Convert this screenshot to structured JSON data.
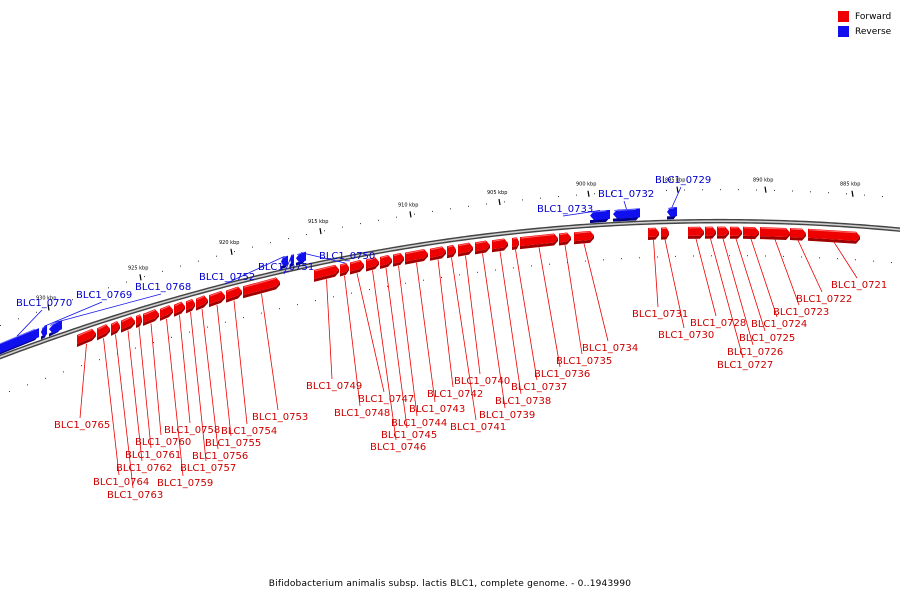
{
  "legend": {
    "forward": {
      "label": "Forward",
      "color": "#ee0000"
    },
    "reverse": {
      "label": "Reverse",
      "color": "#1010ee"
    }
  },
  "caption": "Bifidobacterium animalis subsp. lactis BLC1, complete genome. - 0..1943990",
  "ticks": [
    "885 kbp",
    "890 kbp",
    "895 kbp",
    "900 kbp",
    "905 kbp",
    "910 kbp",
    "915 kbp",
    "920 kbp",
    "925 kbp",
    "930 kbp"
  ],
  "genes": [
    {
      "id": "BLC1_0721",
      "strand": "forward"
    },
    {
      "id": "BLC1_0722",
      "strand": "forward"
    },
    {
      "id": "BLC1_0723",
      "strand": "forward"
    },
    {
      "id": "BLC1_0724",
      "strand": "forward"
    },
    {
      "id": "BLC1_0725",
      "strand": "forward"
    },
    {
      "id": "BLC1_0726",
      "strand": "forward"
    },
    {
      "id": "BLC1_0727",
      "strand": "forward"
    },
    {
      "id": "BLC1_0728",
      "strand": "forward"
    },
    {
      "id": "BLC1_0729",
      "strand": "reverse"
    },
    {
      "id": "BLC1_0730",
      "strand": "forward"
    },
    {
      "id": "BLC1_0731",
      "strand": "forward"
    },
    {
      "id": "BLC1_0732",
      "strand": "reverse"
    },
    {
      "id": "BLC1_0733",
      "strand": "reverse"
    },
    {
      "id": "BLC1_0734",
      "strand": "forward"
    },
    {
      "id": "BLC1_0735",
      "strand": "forward"
    },
    {
      "id": "BLC1_0736",
      "strand": "forward"
    },
    {
      "id": "BLC1_0737",
      "strand": "forward"
    },
    {
      "id": "BLC1_0738",
      "strand": "forward"
    },
    {
      "id": "BLC1_0739",
      "strand": "forward"
    },
    {
      "id": "BLC1_0740",
      "strand": "forward"
    },
    {
      "id": "BLC1_0741",
      "strand": "forward"
    },
    {
      "id": "BLC1_0742",
      "strand": "forward"
    },
    {
      "id": "BLC1_0743",
      "strand": "forward"
    },
    {
      "id": "BLC1_0744",
      "strand": "forward"
    },
    {
      "id": "BLC1_0745",
      "strand": "forward"
    },
    {
      "id": "BLC1_0746",
      "strand": "forward"
    },
    {
      "id": "BLC1_0747",
      "strand": "forward"
    },
    {
      "id": "BLC1_0748",
      "strand": "forward"
    },
    {
      "id": "BLC1_0749",
      "strand": "forward"
    },
    {
      "id": "BLC1_0750",
      "strand": "reverse"
    },
    {
      "id": "BLC1_0751",
      "strand": "reverse"
    },
    {
      "id": "BLC1_0752",
      "strand": "reverse"
    },
    {
      "id": "BLC1_0753",
      "strand": "forward"
    },
    {
      "id": "BLC1_0754",
      "strand": "forward"
    },
    {
      "id": "BLC1_0755",
      "strand": "forward"
    },
    {
      "id": "BLC1_0756",
      "strand": "forward"
    },
    {
      "id": "BLC1_0757",
      "strand": "forward"
    },
    {
      "id": "BLC1_0758",
      "strand": "forward"
    },
    {
      "id": "BLC1_0759",
      "strand": "forward"
    },
    {
      "id": "BLC1_0760",
      "strand": "forward"
    },
    {
      "id": "BLC1_0761",
      "strand": "forward"
    },
    {
      "id": "BLC1_0762",
      "strand": "forward"
    },
    {
      "id": "BLC1_0763",
      "strand": "forward"
    },
    {
      "id": "BLC1_0764",
      "strand": "forward"
    },
    {
      "id": "BLC1_0765",
      "strand": "forward"
    },
    {
      "id": "BLC1_0768",
      "strand": "reverse"
    },
    {
      "id": "BLC1_0769",
      "strand": "reverse"
    },
    {
      "id": "BLC1_0770",
      "strand": "reverse"
    }
  ]
}
